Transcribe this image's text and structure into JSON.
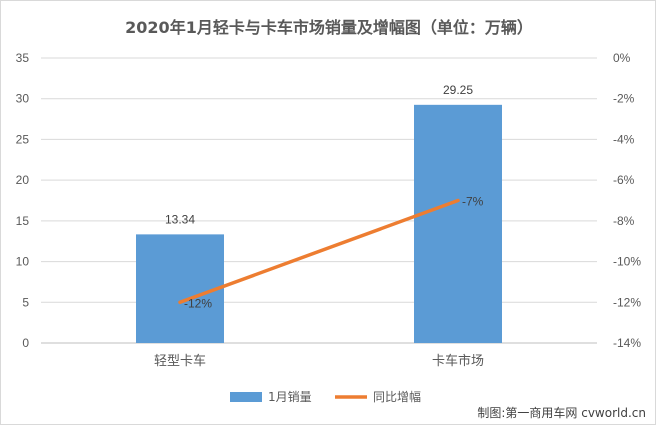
{
  "chart_data": {
    "type": "bar+line",
    "title": "2020年1月轻卡与卡车市场销量及增幅图（单位：万辆）",
    "categories": [
      "轻型卡车",
      "卡车市场"
    ],
    "series": [
      {
        "name": "1月销量",
        "type": "bar",
        "axis": "left",
        "values": [
          13.34,
          29.25
        ],
        "labels": [
          "13.34",
          "29.25"
        ],
        "color": "#5b9bd5"
      },
      {
        "name": "同比增幅",
        "type": "line",
        "axis": "right",
        "values": [
          -12,
          -7
        ],
        "labels": [
          "-12%",
          "-7%"
        ],
        "color": "#ed7d31"
      }
    ],
    "y_left": {
      "min": 0,
      "max": 35,
      "ticks": [
        "0",
        "5",
        "10",
        "15",
        "20",
        "25",
        "30",
        "35"
      ]
    },
    "y_right": {
      "min": -14,
      "max": 0,
      "ticks": [
        "-14%",
        "-12%",
        "-10%",
        "-8%",
        "-6%",
        "-4%",
        "-2%",
        "0%"
      ]
    },
    "grid": true,
    "legend_position": "bottom"
  },
  "credit": "制图:第一商用车网 cvworld.cn"
}
